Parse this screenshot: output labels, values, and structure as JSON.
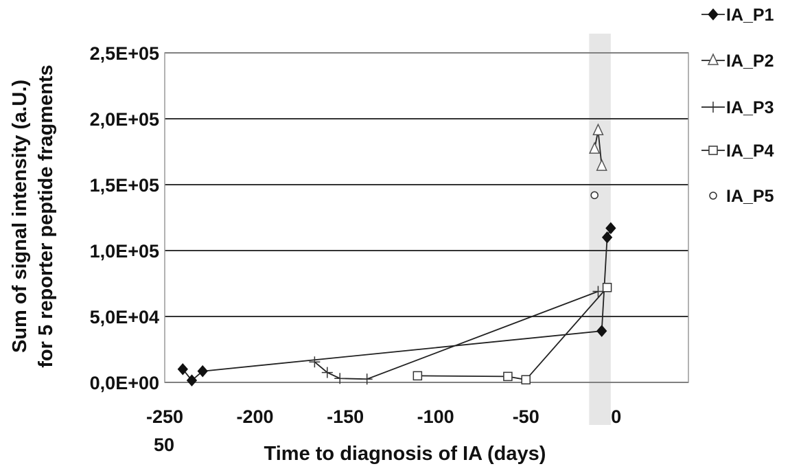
{
  "chart_data": {
    "type": "scatter",
    "title": "",
    "xlabel": "Time to diagnosis of IA (days)",
    "ylabel_line1": "Sum of signal intensity (a.U.)",
    "ylabel_line2": "for 5 reporter peptide fragments",
    "xlim": [
      -250,
      40
    ],
    "ylim": [
      0,
      250000
    ],
    "x_ticks": [
      -250,
      -200,
      -150,
      -100,
      -50,
      0
    ],
    "x_tick_labels": [
      "-250",
      "-200",
      "-150",
      "-100",
      "-50",
      "0"
    ],
    "x_extra_label": "50",
    "y_ticks": [
      0,
      50000,
      100000,
      150000,
      200000,
      250000
    ],
    "y_tick_labels": [
      "0,0E+00",
      "5,0E+04",
      "1,0E+05",
      "1,5E+05",
      "2,0E+05",
      "2,5E+05"
    ],
    "grid": "horizontal",
    "highlight_band": [
      -15,
      -3
    ],
    "highlight_color": "#e6e6e6",
    "legend_position": "right",
    "series": [
      {
        "name": "IA_P1",
        "marker": "diamond",
        "x": [
          -240,
          -235,
          -229,
          -8,
          -5,
          -3
        ],
        "y": [
          10000,
          1500,
          8500,
          39000,
          110000,
          117000
        ]
      },
      {
        "name": "IA_P2",
        "marker": "triangle",
        "x": [
          -12,
          -10,
          -8
        ],
        "y": [
          177000,
          191000,
          164000
        ]
      },
      {
        "name": "IA_P3",
        "marker": "plus",
        "x": [
          -167,
          -160,
          -153,
          -138,
          -10
        ],
        "y": [
          15500,
          7500,
          3000,
          2500,
          69000
        ]
      },
      {
        "name": "IA_P4",
        "marker": "square",
        "x": [
          -110,
          -60,
          -50,
          -5
        ],
        "y": [
          5000,
          4500,
          2000,
          72000
        ]
      },
      {
        "name": "IA_P5",
        "marker": "circle",
        "x": [
          -12
        ],
        "y": [
          142000
        ]
      }
    ]
  }
}
